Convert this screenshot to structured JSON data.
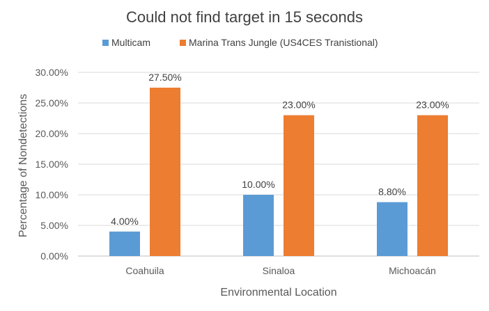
{
  "chart_data": {
    "type": "bar",
    "title": "Could not find target in 15 seconds",
    "xlabel": "Environmental Location",
    "ylabel": "Percentage of Nondetections",
    "categories": [
      "Coahuila",
      "Sinaloa",
      "Michoacán"
    ],
    "series": [
      {
        "name": "Multicam",
        "color": "#5b9bd5",
        "values": [
          4.0,
          10.0,
          8.8
        ],
        "labels": [
          "4.00%",
          "10.00%",
          "8.80%"
        ]
      },
      {
        "name": "Marina Trans Jungle  (US4CES Tranistional)",
        "color": "#ed7d31",
        "values": [
          27.5,
          23.0,
          23.0
        ],
        "labels": [
          "27.50%",
          "23.00%",
          "23.00%"
        ]
      }
    ],
    "ylim": [
      0,
      30
    ],
    "yticks": [
      0,
      5,
      10,
      15,
      20,
      25,
      30
    ],
    "ytick_labels": [
      "0.00%",
      "5.00%",
      "10.00%",
      "15.00%",
      "20.00%",
      "25.00%",
      "30.00%"
    ],
    "grid": true,
    "legend_position": "top"
  }
}
